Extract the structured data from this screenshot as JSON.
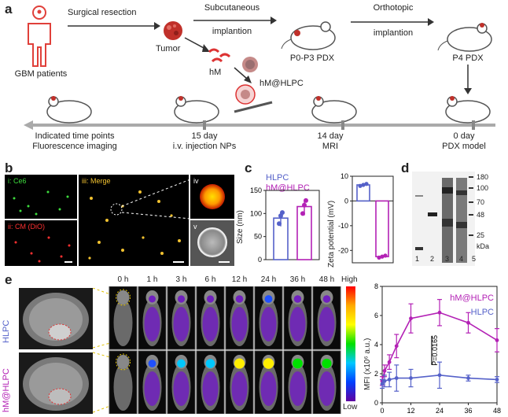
{
  "panel_a": {
    "label": "a",
    "patients_label": "GBM patients",
    "surgical_label": "Surgical resection",
    "tumor_label": "Tumor",
    "hm_label": "hM",
    "hm_hlpc_label": "hM@HLPC",
    "subcut_line1": "Subcutaneous",
    "subcut_line2": "implantion",
    "p0p3_label": "P0-P3 PDX",
    "ortho_line1": "Orthotopic",
    "ortho_line2": "implantion",
    "p4_label": "P4 PDX",
    "timeline": [
      {
        "line1": "Indicated time points",
        "line2": "Fluorescence imaging"
      },
      {
        "line1": "15 day",
        "line2": "i.v. injection NPs"
      },
      {
        "line1": "14 day",
        "line2": "MRI"
      },
      {
        "line1": "0 day",
        "line2": "PDX model"
      }
    ]
  },
  "panel_b": {
    "label": "b",
    "sub_i": "i: Ce6",
    "sub_ii": "ii: CM (DiO)",
    "sub_iii": "iii: Merge",
    "sub_iv": "iv",
    "sub_v": "v",
    "colors": {
      "ce6": "#3ddc3d",
      "cm": "#ff3030",
      "merge": "#f2c230"
    }
  },
  "panel_c": {
    "label": "c",
    "legend": [
      "HLPC",
      "hM@HLPC"
    ],
    "colors": {
      "hlpc": "#5561c9",
      "hm": "#b321b5"
    },
    "size_chart": {
      "type": "bar",
      "ylabel": "Size (nm)",
      "ylim": [
        0,
        150
      ],
      "yticks": [
        "0",
        "50",
        "100",
        "150"
      ],
      "values": [
        90,
        115
      ]
    },
    "zeta_chart": {
      "type": "bar",
      "ylabel": "Zeta potential (mV)",
      "ylim": [
        -25,
        10
      ],
      "yticks": [
        "10",
        "0",
        "-10",
        "-20"
      ],
      "values": [
        6.5,
        -22.5
      ]
    }
  },
  "panel_d": {
    "label": "d",
    "markers": [
      "180",
      "100",
      "70",
      "48",
      "25"
    ],
    "unit": "kDa",
    "lanes": [
      "1",
      "2",
      "3",
      "4",
      "5"
    ]
  },
  "panel_e": {
    "label": "e",
    "row_labels": [
      "HLPC",
      "hM@HLPC"
    ],
    "times": [
      "0 h",
      "1 h",
      "3 h",
      "6 h",
      "12 h",
      "24 h",
      "36 h",
      "48 h"
    ],
    "colorbar_high": "High",
    "colorbar_low": "Low",
    "chart_data": {
      "type": "line",
      "x": [
        0,
        1,
        3,
        6,
        12,
        24,
        36,
        48
      ],
      "xticks": [
        "0",
        "12",
        "24",
        "36",
        "48"
      ],
      "xlim": [
        0,
        48
      ],
      "ylim": [
        0,
        8
      ],
      "yticks": [
        "0",
        "2",
        "4",
        "6",
        "8"
      ],
      "ylabel": "MFI (x10⁶ a.u.)",
      "series": [
        {
          "name": "hM@HLPC",
          "color": "#b321b5",
          "values": [
            1.5,
            2.2,
            2.8,
            3.9,
            5.8,
            6.2,
            5.5,
            4.3
          ],
          "err": [
            0.3,
            0.4,
            0.5,
            0.8,
            1.0,
            0.9,
            0.7,
            0.8
          ]
        },
        {
          "name": "HLPC",
          "color": "#5561c9",
          "values": [
            1.3,
            1.5,
            1.6,
            1.7,
            1.7,
            1.9,
            1.7,
            1.6
          ],
          "err": [
            0.3,
            0.4,
            0.5,
            0.9,
            0.6,
            0.9,
            0.2,
            0.2
          ]
        }
      ],
      "annotation": "P=0.0165"
    }
  }
}
